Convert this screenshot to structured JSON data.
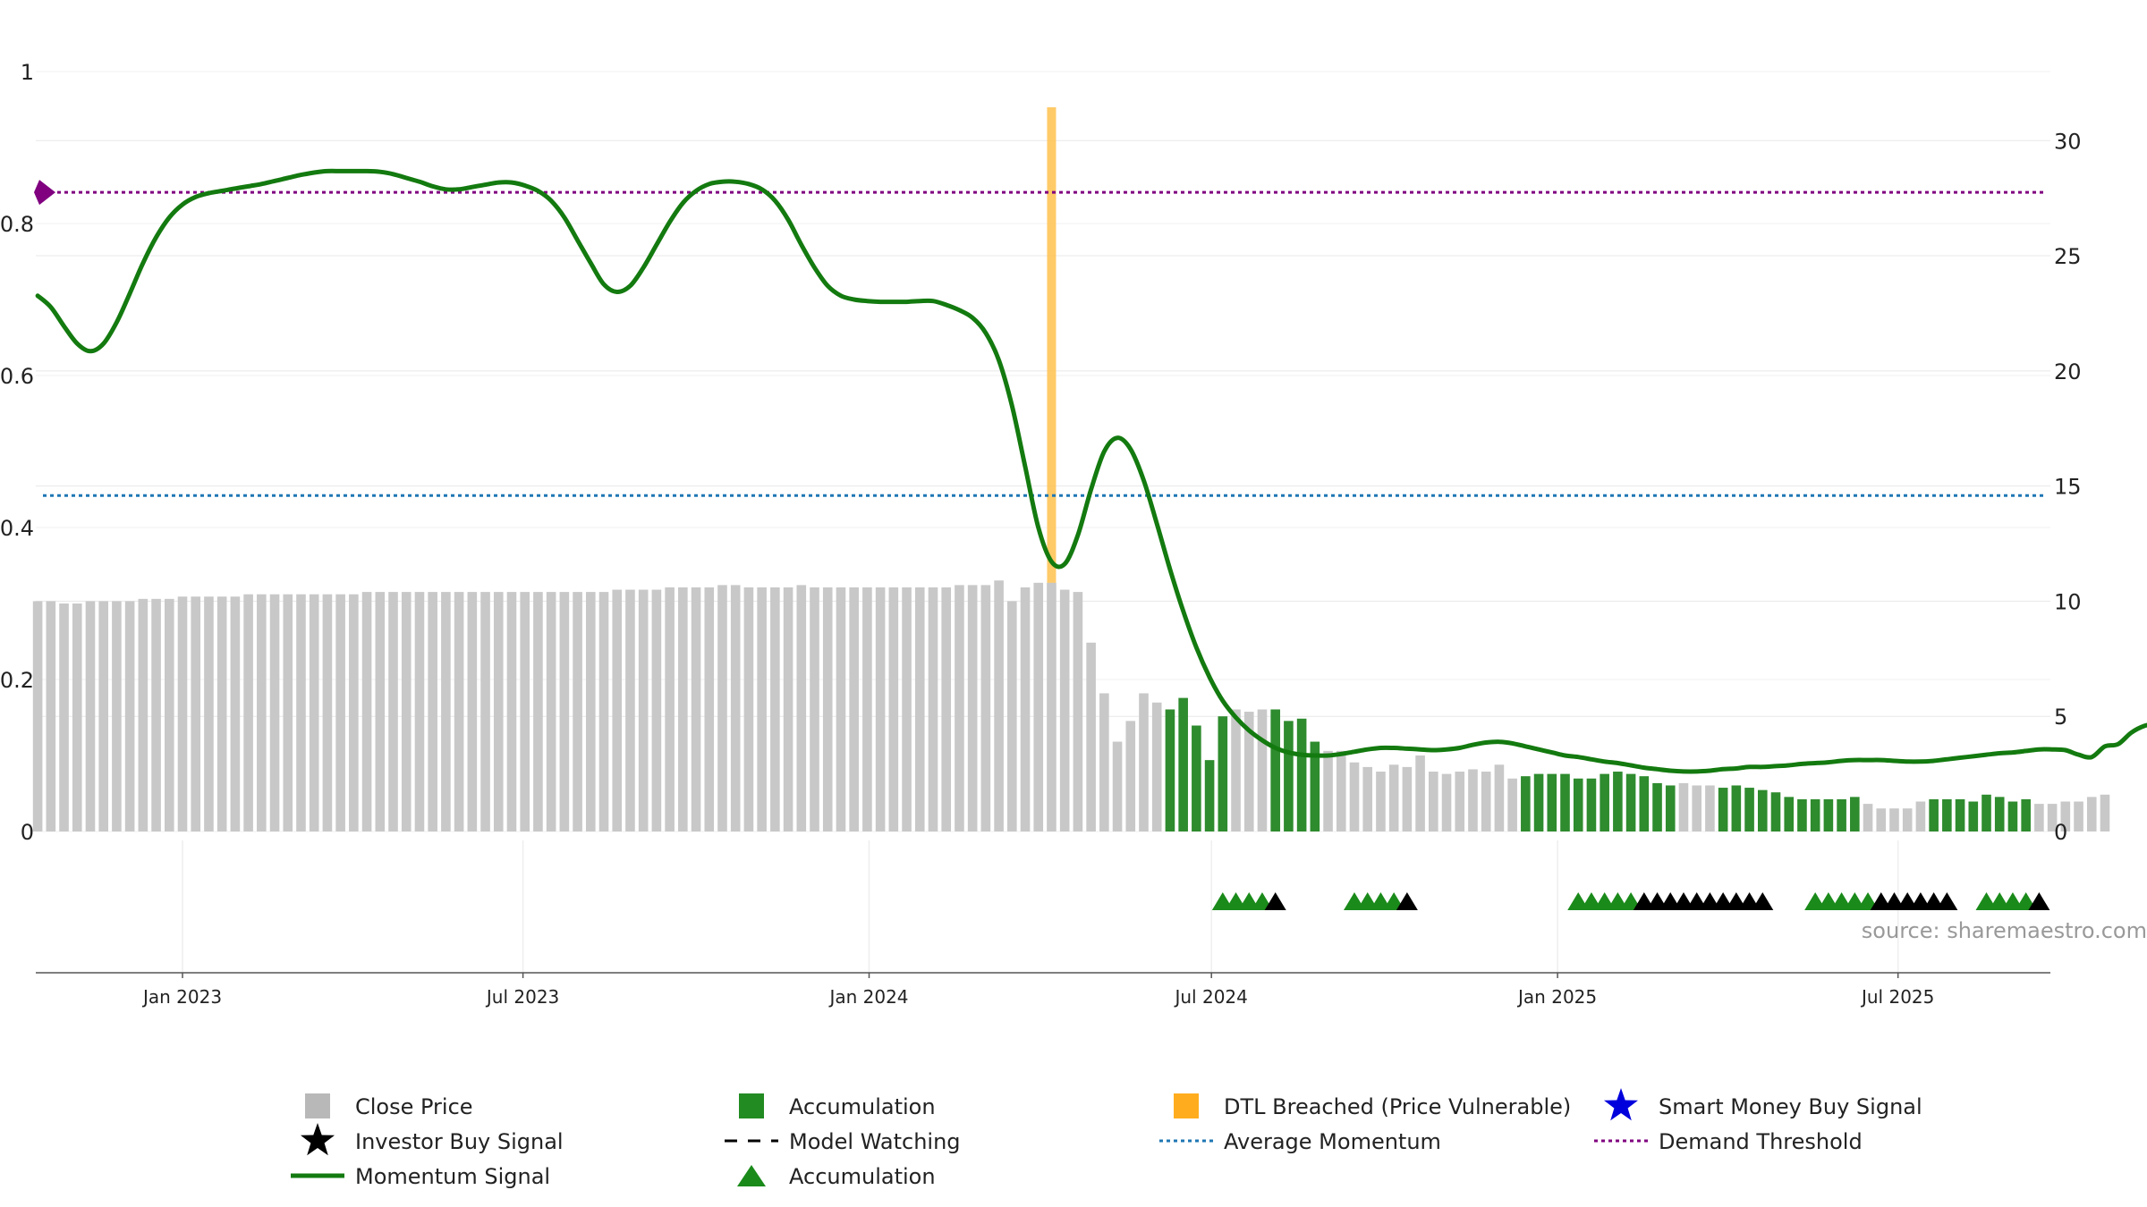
{
  "chart_data": {
    "type": "bar",
    "left_axis": {
      "ylim": [
        0,
        1
      ],
      "ticks": [
        "0",
        "0.2",
        "0.4",
        "0.6",
        "0.8",
        "1"
      ]
    },
    "right_axis": {
      "ylim": [
        0,
        33
      ],
      "ticks": [
        "0",
        "5",
        "10",
        "15",
        "20",
        "25",
        "30"
      ]
    },
    "x_axis": {
      "domain": [
        "2022-10-15",
        "2025-09-20"
      ],
      "ticks": [
        {
          "date": "2023-01-01",
          "label": "Jan 2023"
        },
        {
          "date": "2023-07-01",
          "label": "Jul 2023"
        },
        {
          "date": "2024-01-01",
          "label": "Jan 2024"
        },
        {
          "date": "2024-07-01",
          "label": "Jul 2024"
        },
        {
          "date": "2025-01-01",
          "label": "Jan 2025"
        },
        {
          "date": "2025-07-01",
          "label": "Jul 2025"
        }
      ]
    },
    "price_start": "2022-10-16",
    "price_step_days": 7,
    "close_prices": [
      10.0,
      10.0,
      9.9,
      9.9,
      10.0,
      10.0,
      10.0,
      10.0,
      10.1,
      10.1,
      10.1,
      10.2,
      10.2,
      10.2,
      10.2,
      10.2,
      10.3,
      10.3,
      10.3,
      10.3,
      10.3,
      10.3,
      10.3,
      10.3,
      10.3,
      10.4,
      10.4,
      10.4,
      10.4,
      10.4,
      10.4,
      10.4,
      10.4,
      10.4,
      10.4,
      10.4,
      10.4,
      10.4,
      10.4,
      10.4,
      10.4,
      10.4,
      10.4,
      10.4,
      10.5,
      10.5,
      10.5,
      10.5,
      10.6,
      10.6,
      10.6,
      10.6,
      10.7,
      10.7,
      10.6,
      10.6,
      10.6,
      10.6,
      10.7,
      10.6,
      10.6,
      10.6,
      10.6,
      10.6,
      10.6,
      10.6,
      10.6,
      10.6,
      10.6,
      10.6,
      10.7,
      10.7,
      10.7,
      10.9,
      10.0,
      10.6,
      10.8,
      10.8,
      10.5,
      10.4,
      8.2,
      6.0,
      3.9,
      4.8,
      6.0,
      5.6,
      5.3,
      5.8,
      4.6,
      3.1,
      5.0,
      5.3,
      5.2,
      5.3,
      5.3,
      4.8,
      4.9,
      3.9,
      3.5,
      3.5,
      3.0,
      2.8,
      2.6,
      2.9,
      2.8,
      3.3,
      2.6,
      2.5,
      2.6,
      2.7,
      2.6,
      2.9,
      2.3,
      2.4,
      2.5,
      2.5,
      2.5,
      2.3,
      2.3,
      2.5,
      2.6,
      2.5,
      2.4,
      2.1,
      2.0,
      2.1,
      2.0,
      2.0,
      1.9,
      2.0,
      1.9,
      1.8,
      1.7,
      1.5,
      1.4,
      1.4,
      1.4,
      1.4,
      1.5,
      1.2,
      1.0,
      1.0,
      1.0,
      1.3,
      1.4,
      1.4,
      1.4,
      1.3,
      1.6,
      1.5,
      1.3,
      1.4,
      1.2,
      1.2,
      1.3,
      1.3,
      1.5,
      1.6
    ],
    "accumulation_bar_ranges": [
      [
        86,
        90
      ],
      [
        94,
        97
      ],
      [
        113,
        124
      ],
      [
        128,
        138
      ],
      [
        144,
        151
      ]
    ],
    "momentum_signal": {
      "start": "2022-10-16",
      "step_days": 7,
      "values": [
        0.705,
        0.69,
        0.665,
        0.642,
        0.632,
        0.642,
        0.67,
        0.708,
        0.748,
        0.782,
        0.808,
        0.825,
        0.835,
        0.84,
        0.843,
        0.846,
        0.849,
        0.852,
        0.856,
        0.86,
        0.864,
        0.867,
        0.869,
        0.869,
        0.869,
        0.869,
        0.868,
        0.865,
        0.86,
        0.855,
        0.849,
        0.845,
        0.845,
        0.848,
        0.851,
        0.854,
        0.854,
        0.85,
        0.843,
        0.83,
        0.808,
        0.778,
        0.748,
        0.72,
        0.71,
        0.718,
        0.742,
        0.772,
        0.802,
        0.827,
        0.843,
        0.852,
        0.855,
        0.855,
        0.852,
        0.845,
        0.83,
        0.805,
        0.772,
        0.742,
        0.718,
        0.705,
        0.7,
        0.698,
        0.697,
        0.697,
        0.697,
        0.698,
        0.698,
        0.693,
        0.686,
        0.676,
        0.656,
        0.62,
        0.56,
        0.48,
        0.4,
        0.355,
        0.352,
        0.39,
        0.45,
        0.5,
        0.518,
        0.503,
        0.462,
        0.405,
        0.345,
        0.29,
        0.242,
        0.203,
        0.172,
        0.15,
        0.133,
        0.12,
        0.11,
        0.104,
        0.101,
        0.1,
        0.1,
        0.102,
        0.105,
        0.108,
        0.11,
        0.11,
        0.109,
        0.108,
        0.107,
        0.108,
        0.11,
        0.114,
        0.117,
        0.118,
        0.116,
        0.112,
        0.108,
        0.104,
        0.1,
        0.098,
        0.095,
        0.092,
        0.09,
        0.087,
        0.084,
        0.082,
        0.08,
        0.079,
        0.079,
        0.08,
        0.082,
        0.083,
        0.085,
        0.085,
        0.086,
        0.087,
        0.089,
        0.09,
        0.091,
        0.093,
        0.094,
        0.094,
        0.094,
        0.093,
        0.092,
        0.092,
        0.093,
        0.095,
        0.097,
        0.099,
        0.101,
        0.103,
        0.104,
        0.106,
        0.108,
        0.108,
        0.107,
        0.101,
        0.098,
        0.112,
        0.115,
        0.13,
        0.139,
        0.142
      ]
    },
    "average_momentum": 0.442,
    "demand_threshold": 0.841,
    "dtl_breached_date": "2024-04-07",
    "triangle_runs": [
      {
        "from": "2024-07-07",
        "to": "2024-08-04",
        "colors": [
          "green",
          "green",
          "green",
          "green",
          "black"
        ]
      },
      {
        "from": "2024-09-15",
        "to": "2024-10-13",
        "colors": [
          "green",
          "green",
          "green",
          "green",
          "black"
        ]
      },
      {
        "from": "2025-01-12",
        "to": "2025-04-20",
        "colors": [
          "green",
          "green",
          "green",
          "green",
          "green",
          "black",
          "black",
          "black",
          "black",
          "black",
          "black",
          "black",
          "black",
          "black",
          "black"
        ]
      },
      {
        "from": "2025-05-18",
        "to": "2025-07-27",
        "colors": [
          "green",
          "green",
          "green",
          "green",
          "green",
          "black",
          "black",
          "black",
          "black",
          "black",
          "black"
        ]
      },
      {
        "from": "2025-08-17",
        "to": "2025-09-14",
        "colors": [
          "green",
          "green",
          "green",
          "green",
          "black"
        ]
      }
    ],
    "demand_marker_value": 0.841,
    "source_text": "source: sharemaestro.com",
    "legend": [
      {
        "label": "Close Price",
        "symbol": "square",
        "color": "#b8b8b8"
      },
      {
        "label": "Accumulation",
        "symbol": "square",
        "color": "#228b22"
      },
      {
        "label": "DTL Breached (Price Vulnerable)",
        "symbol": "square",
        "color": "#ffad1f"
      },
      {
        "label": "Smart Money Buy Signal",
        "symbol": "star",
        "color": "#0000dd"
      },
      {
        "label": "Investor Buy Signal",
        "symbol": "star",
        "color": "#000000"
      },
      {
        "label": "Model Watching",
        "symbol": "dash",
        "color": "#000000"
      },
      {
        "label": "Average Momentum",
        "symbol": "dotted",
        "color": "#1f77b4"
      },
      {
        "label": "Demand Threshold",
        "symbol": "dotted",
        "color": "#800080"
      },
      {
        "label": "Momentum Signal",
        "symbol": "line",
        "color": "#137a0f"
      },
      {
        "label": "Accumulation",
        "symbol": "triangle",
        "color": "#1a8a1a"
      }
    ],
    "colors": {
      "close_price": "#c8c8c8",
      "accumulation": "#2e8b2e",
      "momentum": "#137a0f",
      "average_momentum": "#1f77b4",
      "demand_threshold": "#800080",
      "dtl": "#ffc14d",
      "grid": "#e8e8e8",
      "axis": "#555555"
    }
  }
}
